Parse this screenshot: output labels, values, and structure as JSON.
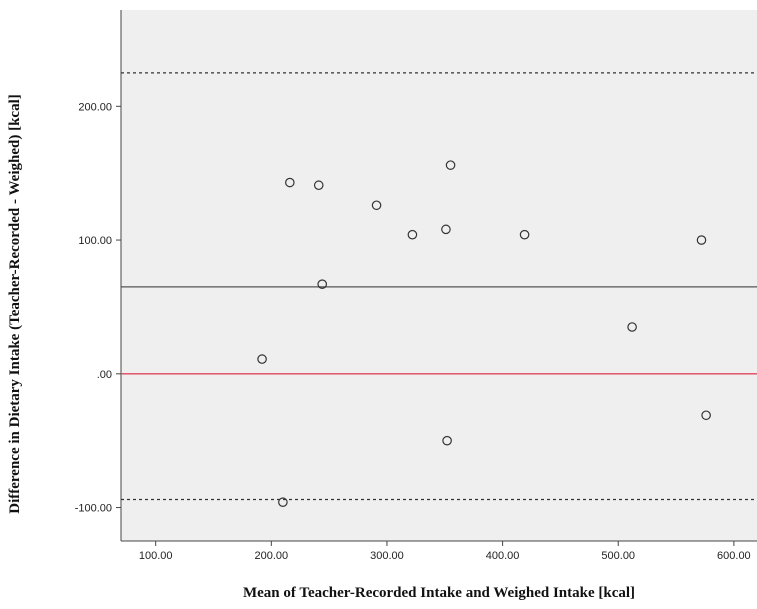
{
  "chart_data": {
    "type": "scatter",
    "title": "",
    "xlabel": "Mean of Teacher-Recorded Intake and Weighed Intake [kcal]",
    "ylabel": "Difference in Dietary Intake (Teacher-Recorded - Weighed) [kcal]",
    "xlim": [
      70,
      620
    ],
    "ylim": [
      -125,
      272
    ],
    "x_ticks": [
      {
        "value": 100,
        "label": "100.00"
      },
      {
        "value": 200,
        "label": "200.00"
      },
      {
        "value": 300,
        "label": "300.00"
      },
      {
        "value": 400,
        "label": "400.00"
      },
      {
        "value": 500,
        "label": "500.00"
      },
      {
        "value": 600,
        "label": "600.00"
      }
    ],
    "y_ticks": [
      {
        "value": -100,
        "label": "-100.00"
      },
      {
        "value": 0,
        "label": ".00"
      },
      {
        "value": 100,
        "label": "100.00"
      },
      {
        "value": 200,
        "label": "200.00"
      }
    ],
    "points": [
      {
        "x": 192,
        "y": 11
      },
      {
        "x": 210,
        "y": -96
      },
      {
        "x": 216,
        "y": 143
      },
      {
        "x": 241,
        "y": 141
      },
      {
        "x": 244,
        "y": 67
      },
      {
        "x": 291,
        "y": 126
      },
      {
        "x": 322,
        "y": 104
      },
      {
        "x": 351,
        "y": 108
      },
      {
        "x": 352,
        "y": -50
      },
      {
        "x": 355,
        "y": 156
      },
      {
        "x": 419,
        "y": 104
      },
      {
        "x": 512,
        "y": 35
      },
      {
        "x": 572,
        "y": 100
      },
      {
        "x": 576,
        "y": -31
      }
    ],
    "reference_lines": [
      {
        "y": 225,
        "style": "dotted",
        "color": "#333333",
        "meaning": "upper limit of agreement"
      },
      {
        "y": 65,
        "style": "solid",
        "color": "#555555",
        "meaning": "mean difference"
      },
      {
        "y": 0,
        "style": "solid",
        "color": "#e0455c",
        "meaning": "zero line"
      },
      {
        "y": -94,
        "style": "dotted",
        "color": "#333333",
        "meaning": "lower limit of agreement"
      }
    ],
    "colors": {
      "plot_background": "#efefef",
      "marker_stroke": "#333333"
    },
    "grid": false,
    "legend": "none"
  }
}
